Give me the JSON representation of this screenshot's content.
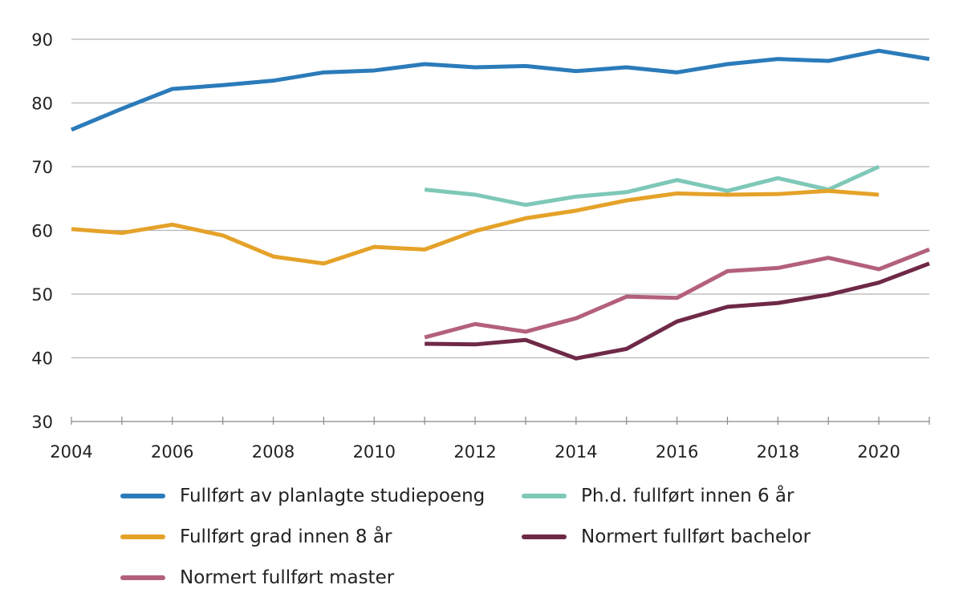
{
  "chart_data": {
    "type": "line",
    "title": "",
    "xlabel": "",
    "ylabel": "",
    "ylim": [
      30,
      90
    ],
    "xlim": [
      2004,
      2021
    ],
    "yticks": [
      30,
      40,
      50,
      60,
      70,
      80,
      90
    ],
    "xticks": [
      2004,
      2006,
      2008,
      2010,
      2012,
      2014,
      2016,
      2018,
      2020
    ],
    "grid": "horizontal",
    "legend_position": "bottom",
    "series": [
      {
        "name": "Fullført av planlagte studiepoeng",
        "color": "#2b7bba",
        "x": [
          2004,
          2005,
          2006,
          2007,
          2008,
          2009,
          2010,
          2011,
          2012,
          2013,
          2014,
          2015,
          2016,
          2017,
          2018,
          2019,
          2020,
          2021
        ],
        "values": [
          75.8,
          79.1,
          82.2,
          82.8,
          83.5,
          84.8,
          85.1,
          86.1,
          85.6,
          85.8,
          85.0,
          85.6,
          84.8,
          86.1,
          86.9,
          86.6,
          88.2,
          86.9
        ]
      },
      {
        "name": "Ph.d. fullført innen 6 år",
        "color": "#7ec8b8",
        "x": [
          2011,
          2012,
          2013,
          2014,
          2015,
          2016,
          2017,
          2018,
          2019,
          2020
        ],
        "values": [
          66.4,
          65.6,
          64.0,
          65.3,
          66.0,
          67.9,
          66.2,
          68.2,
          66.4,
          70.0
        ]
      },
      {
        "name": "Fullført grad innen 8 år",
        "color": "#e5a229",
        "x": [
          2004,
          2005,
          2006,
          2007,
          2008,
          2009,
          2010,
          2011,
          2012,
          2013,
          2014,
          2015,
          2016,
          2017,
          2018,
          2019,
          2020
        ],
        "values": [
          60.2,
          59.6,
          60.9,
          59.2,
          55.9,
          54.8,
          57.4,
          57.0,
          59.9,
          61.9,
          63.1,
          64.7,
          65.8,
          65.6,
          65.7,
          66.2,
          65.6
        ]
      },
      {
        "name": "Normert fullført bachelor",
        "color": "#6f2948",
        "x": [
          2011,
          2012,
          2013,
          2014,
          2015,
          2016,
          2017,
          2018,
          2019,
          2020,
          2021
        ],
        "values": [
          42.2,
          42.1,
          42.8,
          39.9,
          41.4,
          45.7,
          48.0,
          48.6,
          49.9,
          51.8,
          54.8
        ]
      },
      {
        "name": "Normert fullført master",
        "color": "#b3607e",
        "x": [
          2011,
          2012,
          2013,
          2014,
          2015,
          2016,
          2017,
          2018,
          2019,
          2020,
          2021
        ],
        "values": [
          43.2,
          45.3,
          44.1,
          46.2,
          49.6,
          49.4,
          53.6,
          54.1,
          55.7,
          53.9,
          57.0
        ]
      }
    ]
  }
}
